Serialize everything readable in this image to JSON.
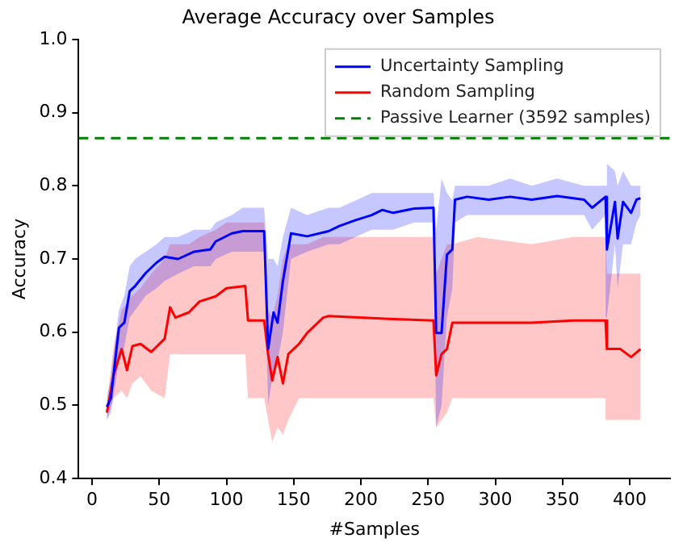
{
  "chart_data": {
    "type": "line",
    "title": "Average Accuracy over Samples",
    "xlabel": "#Samples",
    "ylabel": "Accuracy",
    "xlim": [
      -10,
      430
    ],
    "xticks": [
      0,
      50,
      100,
      150,
      200,
      250,
      300,
      350,
      400
    ],
    "ylim": [
      0.4,
      1.0
    ],
    "yticks": [
      0.4,
      0.5,
      0.6,
      0.7,
      0.8,
      0.9,
      {
        "value": 1,
        "label": "1.0"
      }
    ],
    "grid": false,
    "legend": "top right",
    "marker": "none",
    "line_style": "solid",
    "series": [
      {
        "name": "Uncertainty Sampling",
        "color": "#0000ff",
        "x": [
          11,
          14,
          20,
          24,
          28,
          32,
          40,
          48,
          54,
          64,
          76,
          88,
          92,
          104,
          112,
          128,
          131,
          135,
          138,
          142,
          148,
          160,
          176,
          184,
          196,
          208,
          216,
          224,
          240,
          254,
          256,
          260,
          264,
          268,
          270,
          279,
          295,
          311,
          327,
          346,
          366,
          372,
          382,
          383,
          389,
          391,
          395,
          401,
          405,
          408
        ],
        "values": [
          0.498,
          0.51,
          0.606,
          0.613,
          0.656,
          0.663,
          0.681,
          0.695,
          0.703,
          0.7,
          0.71,
          0.713,
          0.724,
          0.735,
          0.738,
          0.738,
          0.577,
          0.627,
          0.613,
          0.67,
          0.735,
          0.731,
          0.738,
          0.745,
          0.753,
          0.76,
          0.767,
          0.763,
          0.769,
          0.77,
          0.599,
          0.599,
          0.706,
          0.713,
          0.781,
          0.785,
          0.781,
          0.785,
          0.781,
          0.786,
          0.781,
          0.77,
          0.785,
          0.713,
          0.778,
          0.728,
          0.778,
          0.763,
          0.781,
          0.783
        ],
        "lower": [
          0.48,
          0.49,
          0.56,
          0.58,
          0.62,
          0.63,
          0.65,
          0.66,
          0.67,
          0.68,
          0.69,
          0.69,
          0.7,
          0.71,
          0.71,
          0.71,
          0.5,
          0.55,
          0.56,
          0.6,
          0.7,
          0.71,
          0.72,
          0.72,
          0.73,
          0.74,
          0.74,
          0.74,
          0.75,
          0.75,
          0.47,
          0.5,
          0.62,
          0.66,
          0.75,
          0.76,
          0.76,
          0.76,
          0.76,
          0.76,
          0.76,
          0.74,
          0.76,
          0.62,
          0.72,
          0.66,
          0.72,
          0.72,
          0.75,
          0.76
        ],
        "upper": [
          0.51,
          0.54,
          0.63,
          0.65,
          0.69,
          0.7,
          0.71,
          0.72,
          0.73,
          0.73,
          0.74,
          0.74,
          0.75,
          0.76,
          0.77,
          0.77,
          0.7,
          0.7,
          0.69,
          0.73,
          0.77,
          0.76,
          0.77,
          0.77,
          0.78,
          0.79,
          0.79,
          0.79,
          0.79,
          0.79,
          0.74,
          0.81,
          0.79,
          0.78,
          0.8,
          0.8,
          0.8,
          0.81,
          0.8,
          0.81,
          0.8,
          0.8,
          0.8,
          0.83,
          0.82,
          0.8,
          0.82,
          0.8,
          0.8,
          0.8
        ]
      },
      {
        "name": "Random Sampling",
        "color": "#ff0000",
        "x": [
          11,
          16,
          22,
          26,
          30,
          36,
          44,
          54,
          58,
          62,
          72,
          80,
          92,
          100,
          114,
          116,
          128,
          131,
          134,
          138,
          142,
          146,
          154,
          160,
          172,
          176,
          224,
          254,
          256,
          260,
          264,
          268,
          287,
          327,
          358,
          382,
          383,
          393,
          401,
          408
        ],
        "values": [
          0.49,
          0.541,
          0.577,
          0.548,
          0.581,
          0.584,
          0.573,
          0.591,
          0.634,
          0.62,
          0.627,
          0.642,
          0.649,
          0.66,
          0.663,
          0.616,
          0.616,
          0.57,
          0.534,
          0.566,
          0.53,
          0.57,
          0.584,
          0.599,
          0.62,
          0.622,
          0.618,
          0.616,
          0.541,
          0.57,
          0.577,
          0.613,
          0.613,
          0.613,
          0.616,
          0.616,
          0.577,
          0.577,
          0.566,
          0.577
        ],
        "lower": [
          0.48,
          0.51,
          0.52,
          0.51,
          0.53,
          0.54,
          0.52,
          0.51,
          0.57,
          0.57,
          0.57,
          0.57,
          0.57,
          0.57,
          0.57,
          0.51,
          0.51,
          0.48,
          0.45,
          0.47,
          0.46,
          0.48,
          0.51,
          0.51,
          0.51,
          0.51,
          0.51,
          0.51,
          0.47,
          0.48,
          0.49,
          0.51,
          0.51,
          0.51,
          0.51,
          0.51,
          0.48,
          0.48,
          0.48,
          0.48
        ],
        "upper": [
          0.5,
          0.58,
          0.63,
          0.64,
          0.65,
          0.66,
          0.68,
          0.7,
          0.72,
          0.72,
          0.72,
          0.73,
          0.74,
          0.75,
          0.75,
          0.75,
          0.75,
          0.63,
          0.62,
          0.65,
          0.7,
          0.72,
          0.72,
          0.72,
          0.73,
          0.73,
          0.73,
          0.73,
          0.68,
          0.7,
          0.72,
          0.72,
          0.73,
          0.72,
          0.73,
          0.73,
          0.68,
          0.68,
          0.68,
          0.68
        ]
      }
    ],
    "ref_lines": [
      {
        "axis": "y",
        "value": 0.865,
        "label": "Passive Learner (3592 samples)",
        "color": "#008000",
        "line_style": "dashed"
      }
    ]
  }
}
